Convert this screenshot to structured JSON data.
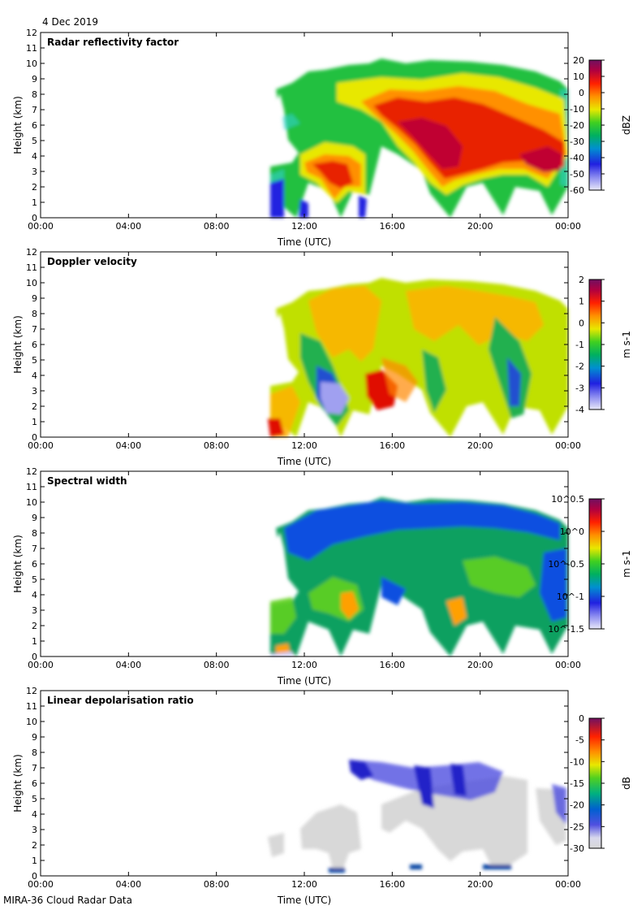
{
  "header": {
    "date": "4 Dec 2019"
  },
  "footer": {
    "label": "MIRA-36 Cloud Radar Data"
  },
  "chart_data": [
    {
      "type": "heatmap",
      "title": "Radar reflectivity factor",
      "xlabel": "Time (UTC)",
      "ylabel": "Height (km)",
      "xticks": [
        "00:00",
        "04:00",
        "08:00",
        "12:00",
        "16:00",
        "20:00",
        "00:00"
      ],
      "xlim_hours": [
        0,
        24
      ],
      "ylim": [
        0,
        12
      ],
      "yticks": [
        "0",
        "1",
        "2",
        "3",
        "4",
        "5",
        "6",
        "7",
        "8",
        "9",
        "10",
        "11",
        "12"
      ],
      "colorbar": {
        "label": "dBZ",
        "ticks": [
          "20",
          "10",
          "0",
          "-10",
          "-20",
          "-30",
          "-40",
          "-50",
          "-60"
        ],
        "range": [
          -60,
          20
        ]
      },
      "echo_extent": {
        "start_hour": 9.4,
        "end_hour": 24,
        "max_height_km": 10
      }
    },
    {
      "type": "heatmap",
      "title": "Doppler velocity",
      "xlabel": "Time (UTC)",
      "ylabel": "Height (km)",
      "xticks": [
        "00:00",
        "04:00",
        "08:00",
        "12:00",
        "16:00",
        "20:00",
        "00:00"
      ],
      "xlim_hours": [
        0,
        24
      ],
      "ylim": [
        0,
        12
      ],
      "yticks": [
        "0",
        "1",
        "2",
        "3",
        "4",
        "5",
        "6",
        "7",
        "8",
        "9",
        "10",
        "11",
        "12"
      ],
      "colorbar": {
        "label": "m s-1",
        "ticks": [
          "2",
          "1",
          "0",
          "-1",
          "-2",
          "-3",
          "-4"
        ],
        "range": [
          -4,
          2
        ]
      },
      "echo_extent": {
        "start_hour": 9.4,
        "end_hour": 24,
        "max_height_km": 10
      }
    },
    {
      "type": "heatmap",
      "title": "Spectral width",
      "xlabel": "Time (UTC)",
      "ylabel": "Height (km)",
      "xticks": [
        "00:00",
        "04:00",
        "08:00",
        "12:00",
        "16:00",
        "20:00",
        "00:00"
      ],
      "xlim_hours": [
        0,
        24
      ],
      "ylim": [
        0,
        12
      ],
      "yticks": [
        "0",
        "1",
        "2",
        "3",
        "4",
        "5",
        "6",
        "7",
        "8",
        "9",
        "10",
        "11",
        "12"
      ],
      "colorbar": {
        "label": "m s-1",
        "ticks": [
          "10^0.5",
          "10^0",
          "10^-0.5",
          "10^-1",
          "10^-1.5"
        ],
        "range": [
          -1.5,
          0.5
        ]
      },
      "echo_extent": {
        "start_hour": 9.4,
        "end_hour": 24,
        "max_height_km": 10
      }
    },
    {
      "type": "heatmap",
      "title": "Linear depolarisation ratio",
      "xlabel": "Time (UTC)",
      "ylabel": "Height (km)",
      "xticks": [
        "00:00",
        "04:00",
        "08:00",
        "12:00",
        "16:00",
        "20:00",
        "00:00"
      ],
      "xlim_hours": [
        0,
        24
      ],
      "ylim": [
        0,
        12
      ],
      "yticks": [
        "0",
        "1",
        "2",
        "3",
        "4",
        "5",
        "6",
        "7",
        "8",
        "9",
        "10",
        "11",
        "12"
      ],
      "colorbar": {
        "label": "dB",
        "ticks": [
          "0",
          "-5",
          "-10",
          "-15",
          "-20",
          "-25",
          "-30"
        ],
        "range": [
          -30,
          0
        ]
      },
      "echo_extent": {
        "start_hour": 9.8,
        "end_hour": 24,
        "max_height_km": 7.6
      }
    }
  ]
}
